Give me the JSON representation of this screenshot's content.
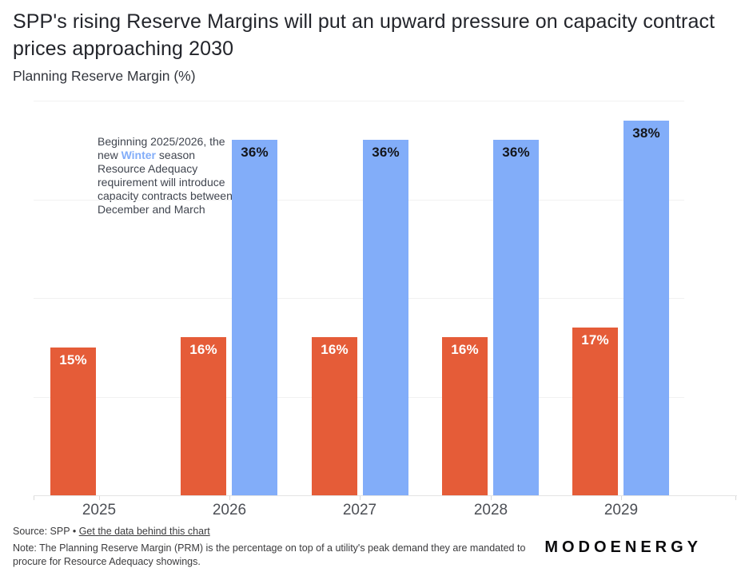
{
  "header": {
    "title": "SPP's rising Reserve Margins will put an upward pressure on capacity contract prices approaching 2030",
    "subtitle": "Planning Reserve Margin (%)"
  },
  "annotation": {
    "before": "Beginning 2025/2026, the new ",
    "highlight": "Winter",
    "after": " season Resource Adequacy requirement will introduce capacity contracts between December and March"
  },
  "chart_data": {
    "type": "bar",
    "title": "SPP's rising Reserve Margins will put an upward pressure on capacity contract prices approaching 2030",
    "ylabel": "Planning Reserve Margin (%)",
    "xlabel": "",
    "categories": [
      "2025",
      "2026",
      "2027",
      "2028",
      "2029"
    ],
    "series": [
      {
        "name": "orange",
        "color": "#E55C38",
        "label_color": "#FFFFFF",
        "values": [
          15,
          16,
          16,
          16,
          17
        ]
      },
      {
        "name": "winter-blue",
        "color": "#82ADF9",
        "label_color": "#14161B",
        "values": [
          null,
          36,
          36,
          36,
          38
        ]
      }
    ],
    "value_suffix": "%",
    "ylim": [
      0,
      42
    ],
    "gridlines": [
      10,
      20,
      30,
      40
    ],
    "grid": "horizontal",
    "legend_position": "none"
  },
  "footer": {
    "source_label": "Source: SPP",
    "separator": "•",
    "link_text": "Get the data behind this chart",
    "note": "Note: The Planning Reserve Margin (PRM) is the percentage on top of a utility's peak demand they are mandated to procure for Resource Adequacy showings.",
    "logo": "MODOENERGY"
  },
  "colors": {
    "orange": "#E55C38",
    "blue": "#82ADF9",
    "annotation_highlight": "#82ADF9"
  }
}
